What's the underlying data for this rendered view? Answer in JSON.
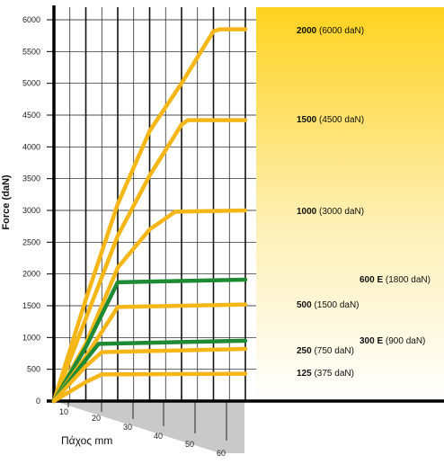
{
  "chart_data": {
    "type": "line",
    "title": "",
    "ylabel": "Force (daN)",
    "xlabel": "Πάχος mm",
    "ylim": [
      0,
      6000
    ],
    "xlim": [
      0,
      60
    ],
    "y_ticks": [
      "0",
      "500",
      "1000",
      "1500",
      "2000",
      "2500",
      "3000",
      "3500",
      "4000",
      "4500",
      "5000",
      "5500",
      "6000"
    ],
    "x_ticks": [
      "10",
      "20",
      "30",
      "40",
      "50",
      "60"
    ],
    "colors": {
      "yellow": "#f5b617",
      "green": "#1e8a33",
      "grid": "#111111",
      "shade": "#c9c9c9"
    },
    "series": [
      {
        "name": "2000",
        "detail": "(6000 daN)",
        "color": "yellow",
        "x": [
          0,
          10,
          20,
          30,
          40,
          50,
          52,
          60
        ],
        "y": [
          0,
          1600,
          3100,
          4250,
          5000,
          5820,
          5850,
          5850
        ]
      },
      {
        "name": "1500",
        "detail": "(4500 daN)",
        "color": "yellow",
        "x": [
          0,
          10,
          20,
          30,
          40,
          42,
          60
        ],
        "y": [
          0,
          1300,
          2600,
          3550,
          4350,
          4420,
          4420
        ]
      },
      {
        "name": "1000",
        "detail": "(3000 daN)",
        "color": "yellow",
        "x": [
          0,
          10,
          20,
          30,
          38,
          60
        ],
        "y": [
          0,
          900,
          2100,
          2700,
          2980,
          3000
        ]
      },
      {
        "name": "600 E",
        "detail": "(1800 daN)",
        "color": "green",
        "x": [
          0,
          10,
          20,
          60
        ],
        "y": [
          0,
          850,
          1870,
          1910
        ]
      },
      {
        "name": "500",
        "detail": "(1500 daN)",
        "color": "yellow",
        "x": [
          0,
          10,
          20,
          60
        ],
        "y": [
          0,
          700,
          1480,
          1520
        ]
      },
      {
        "name": "300 E",
        "detail": "(900 daN)",
        "color": "green",
        "x": [
          0,
          10,
          14,
          60
        ],
        "y": [
          0,
          650,
          900,
          950
        ]
      },
      {
        "name": "250",
        "detail": "(750 daN)",
        "color": "yellow",
        "x": [
          0,
          10,
          15,
          60
        ],
        "y": [
          0,
          550,
          770,
          820
        ]
      },
      {
        "name": "125",
        "detail": "(375 daN)",
        "color": "yellow",
        "x": [
          0,
          10,
          15,
          60
        ],
        "y": [
          0,
          300,
          420,
          430
        ]
      }
    ]
  }
}
